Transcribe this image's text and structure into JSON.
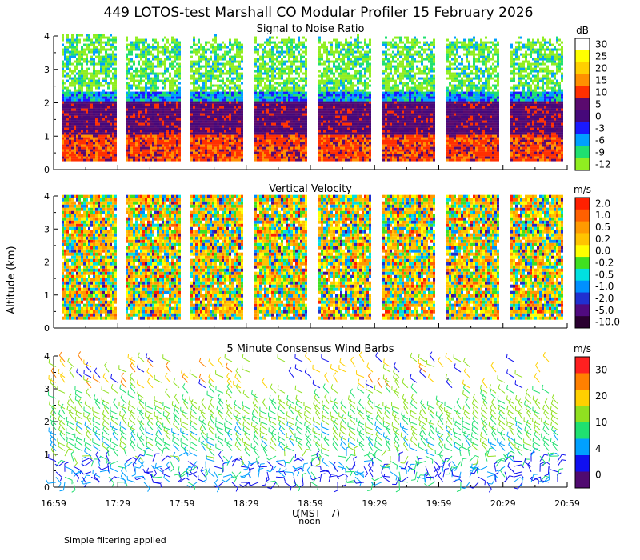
{
  "title": "449 LOTOS-test Marshall CO Modular Profiler 15 February 2026",
  "ylabel": "Altitude (km)",
  "xlabel": "UT",
  "xlabel2": "(MST - 7)",
  "noon_label": "noon",
  "footnote": "Simple filtering applied",
  "chart_data": [
    {
      "type": "heatmap",
      "title": "Signal to Noise Ratio",
      "ylabel": "Altitude (km)",
      "ylim": [
        0,
        4
      ],
      "yticks": [
        "0",
        "1",
        "2",
        "3",
        "4"
      ],
      "xticks": [
        "16:59",
        "17:29",
        "17:59",
        "18:29",
        "18:59",
        "19:29",
        "19:59",
        "20:29",
        "20:59"
      ],
      "xlim_minutes": [
        1019,
        1259
      ],
      "colorbar": {
        "unit": "dB",
        "labels": [
          "30",
          "25",
          "20",
          "15",
          "10",
          "5",
          "0",
          "-3",
          "-6",
          "-9",
          "-12"
        ],
        "colors": [
          "#ffffff",
          "#ffff00",
          "#ffd000",
          "#ff9000",
          "#ff3000",
          "#5a0a6e",
          "#46087a",
          "#1a1aff",
          "#00a0ff",
          "#20e070",
          "#90ee20"
        ]
      },
      "description_bands": [
        {
          "from_km": 0.25,
          "to_km": 1.1,
          "level": "10 to 15 dB"
        },
        {
          "from_km": 1.1,
          "to_km": 2.0,
          "level": "0 to 5 dB"
        },
        {
          "from_km": 2.0,
          "to_km": 2.3,
          "level": "-3 to -6 dB"
        },
        {
          "from_km": 2.3,
          "to_km": 4.0,
          "level": "-9 to -12 dB, patchy"
        }
      ]
    },
    {
      "type": "heatmap",
      "title": "Vertical Velocity",
      "ylabel": "Altitude (km)",
      "ylim": [
        0,
        4
      ],
      "yticks": [
        "0",
        "1",
        "2",
        "3",
        "4"
      ],
      "colorbar": {
        "unit": "m/s",
        "labels": [
          "2.0",
          "1.0",
          "0.5",
          "0.2",
          "0.0",
          "-0.2",
          "-0.5",
          "-1.0",
          "-2.0",
          "-5.0",
          "-10.0"
        ],
        "colors": [
          "#ff2000",
          "#ff6000",
          "#ff9a00",
          "#ffc400",
          "#ffff00",
          "#40e020",
          "#00e0e0",
          "#0090ff",
          "#2030d0",
          "#500a80",
          "#2a0030"
        ]
      }
    },
    {
      "type": "scatter",
      "title": "5 Minute Consensus Wind Barbs",
      "ylabel": "Altitude (km)",
      "ylim": [
        0,
        4
      ],
      "yticks": [
        "0",
        "1",
        "2",
        "3",
        "4"
      ],
      "colorbar": {
        "unit": "m/s",
        "labels": [
          "30",
          "20",
          "10",
          "4",
          "0"
        ],
        "colors": [
          "#ff2020",
          "#ff8000",
          "#ffd000",
          "#90e020",
          "#20e070",
          "#00a0ff",
          "#1010f0",
          "#500a70"
        ]
      }
    }
  ]
}
